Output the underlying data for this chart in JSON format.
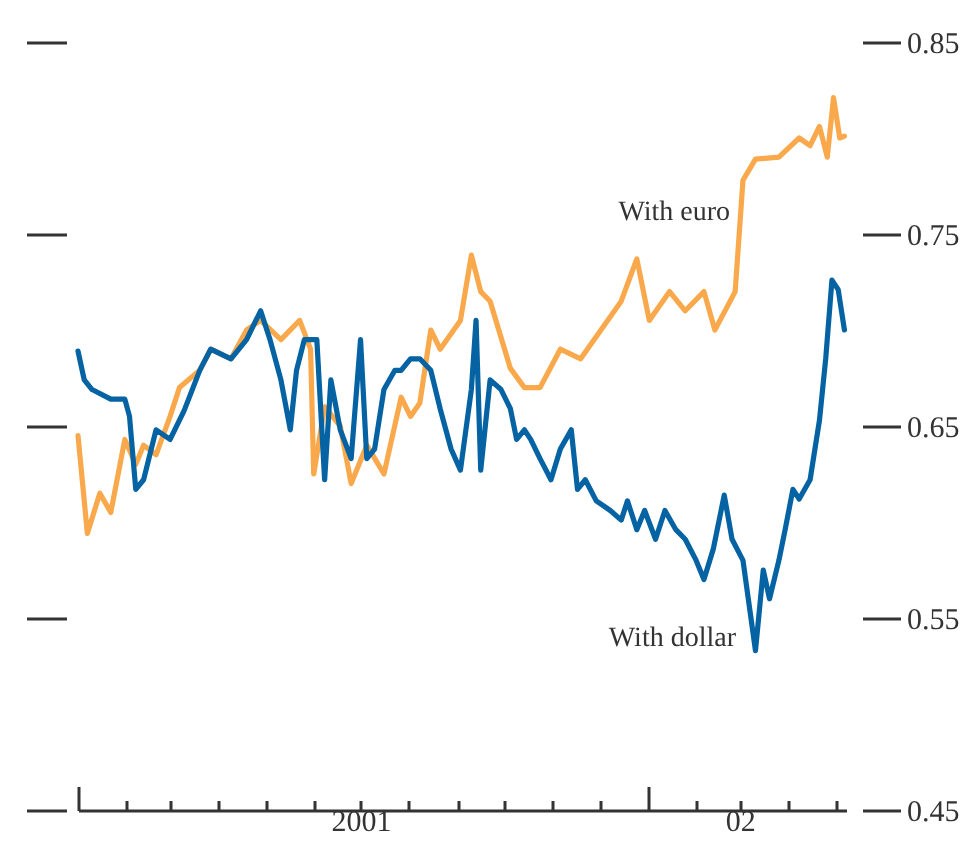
{
  "chart_data": {
    "type": "line",
    "xlim": [
      "2001-01-01",
      "2002-05-08"
    ],
    "ylim": [
      0.45,
      0.85
    ],
    "yticks": [
      0.45,
      0.55,
      0.65,
      0.75,
      0.85
    ],
    "xticks": [
      {
        "value": "2001-01-01",
        "label": null
      },
      {
        "value": "2001-02-01",
        "label": null
      },
      {
        "value": "2001-03-01",
        "label": null
      },
      {
        "value": "2001-04-01",
        "label": null
      },
      {
        "value": "2001-05-01",
        "label": null
      },
      {
        "value": "2001-06-01",
        "label": null
      },
      {
        "value": "2001-07-01",
        "label": "2001"
      },
      {
        "value": "2001-08-01",
        "label": null
      },
      {
        "value": "2001-09-01",
        "label": null
      },
      {
        "value": "2001-10-01",
        "label": null
      },
      {
        "value": "2001-11-01",
        "label": null
      },
      {
        "value": "2001-12-01",
        "label": null
      },
      {
        "value": "2002-01-01",
        "label": null
      },
      {
        "value": "2002-02-01",
        "label": null
      },
      {
        "value": "2002-03-01",
        "label": "02"
      },
      {
        "value": "2002-04-01",
        "label": null
      },
      {
        "value": "2002-05-01",
        "label": null
      }
    ],
    "grid": false,
    "line_style": "solid",
    "marker": "none",
    "series": [
      {
        "name": "With euro",
        "color": "#f9a94c",
        "x": [
          "2001-01-01",
          "2001-01-07",
          "2001-01-15",
          "2001-01-22",
          "2001-01-31",
          "2001-02-07",
          "2001-02-12",
          "2001-02-20",
          "2001-03-01",
          "2001-03-07",
          "2001-03-20",
          "2001-03-27",
          "2001-04-09",
          "2001-04-19",
          "2001-04-28",
          "2001-05-11",
          "2001-05-23",
          "2001-05-30",
          "2001-06-01",
          "2001-06-08",
          "2001-06-18",
          "2001-06-25",
          "2001-07-05",
          "2001-07-16",
          "2001-07-27",
          "2001-08-02",
          "2001-08-08",
          "2001-08-15",
          "2001-08-21",
          "2001-09-03",
          "2001-09-10",
          "2001-09-16",
          "2001-09-22",
          "2001-10-05",
          "2001-10-14",
          "2001-10-24",
          "2001-11-06",
          "2001-11-19",
          "2001-12-02",
          "2001-12-15",
          "2001-12-25",
          "2002-01-02",
          "2002-01-15",
          "2002-01-25",
          "2002-02-06",
          "2002-02-13",
          "2002-02-26",
          "2002-03-03",
          "2002-03-11",
          "2002-03-26",
          "2002-04-08",
          "2002-04-15",
          "2002-04-21",
          "2002-04-26",
          "2002-04-30",
          "2002-05-04",
          "2002-05-07"
        ],
        "values": [
          0.645,
          0.594,
          0.615,
          0.605,
          0.643,
          0.63,
          0.64,
          0.635,
          0.655,
          0.67,
          0.679,
          0.69,
          0.685,
          0.7,
          0.705,
          0.695,
          0.705,
          0.69,
          0.625,
          0.66,
          0.65,
          0.62,
          0.64,
          0.625,
          0.665,
          0.655,
          0.662,
          0.7,
          0.69,
          0.705,
          0.739,
          0.72,
          0.715,
          0.68,
          0.67,
          0.67,
          0.69,
          0.685,
          0.7,
          0.715,
          0.737,
          0.705,
          0.72,
          0.71,
          0.72,
          0.7,
          0.72,
          0.778,
          0.789,
          0.79,
          0.8,
          0.796,
          0.806,
          0.79,
          0.821,
          0.8,
          0.801
        ]
      },
      {
        "name": "With dollar",
        "color": "#0563a3",
        "x": [
          "2001-01-01",
          "2001-01-05",
          "2001-01-10",
          "2001-01-22",
          "2001-01-31",
          "2001-02-03",
          "2001-02-07",
          "2001-02-12",
          "2001-02-20",
          "2001-03-01",
          "2001-03-10",
          "2001-03-20",
          "2001-03-27",
          "2001-04-09",
          "2001-04-19",
          "2001-04-28",
          "2001-05-04",
          "2001-05-11",
          "2001-05-17",
          "2001-05-21",
          "2001-05-26",
          "2001-06-03",
          "2001-06-08",
          "2001-06-12",
          "2001-06-18",
          "2001-06-25",
          "2001-07-01",
          "2001-07-05",
          "2001-07-10",
          "2001-07-16",
          "2001-07-23",
          "2001-07-27",
          "2001-08-02",
          "2001-08-08",
          "2001-08-15",
          "2001-08-21",
          "2001-08-28",
          "2001-09-03",
          "2001-09-10",
          "2001-09-13",
          "2001-09-16",
          "2001-09-22",
          "2001-09-29",
          "2001-10-05",
          "2001-10-09",
          "2001-10-14",
          "2001-10-18",
          "2001-10-24",
          "2001-10-31",
          "2001-11-06",
          "2001-11-13",
          "2001-11-17",
          "2001-11-22",
          "2001-11-29",
          "2001-12-08",
          "2001-12-15",
          "2001-12-19",
          "2001-12-25",
          "2001-12-30",
          "2002-01-06",
          "2002-01-12",
          "2002-01-19",
          "2002-01-25",
          "2002-02-01",
          "2002-02-06",
          "2002-02-12",
          "2002-02-19",
          "2002-02-24",
          "2002-03-03",
          "2002-03-11",
          "2002-03-16",
          "2002-03-20",
          "2002-03-26",
          "2002-03-30",
          "2002-04-04",
          "2002-04-08",
          "2002-04-15",
          "2002-04-21",
          "2002-04-25",
          "2002-04-29",
          "2002-05-03",
          "2002-05-07"
        ],
        "values": [
          0.689,
          0.674,
          0.669,
          0.664,
          0.664,
          0.655,
          0.617,
          0.622,
          0.648,
          0.643,
          0.658,
          0.679,
          0.69,
          0.685,
          0.695,
          0.71,
          0.695,
          0.674,
          0.648,
          0.679,
          0.695,
          0.695,
          0.622,
          0.674,
          0.648,
          0.633,
          0.695,
          0.633,
          0.638,
          0.669,
          0.679,
          0.679,
          0.685,
          0.685,
          0.679,
          0.659,
          0.638,
          0.627,
          0.669,
          0.705,
          0.627,
          0.674,
          0.669,
          0.659,
          0.643,
          0.648,
          0.643,
          0.633,
          0.622,
          0.638,
          0.648,
          0.617,
          0.622,
          0.611,
          0.606,
          0.601,
          0.611,
          0.596,
          0.606,
          0.591,
          0.606,
          0.596,
          0.591,
          0.58,
          0.57,
          0.586,
          0.614,
          0.591,
          0.58,
          0.533,
          0.575,
          0.56,
          0.58,
          0.596,
          0.617,
          0.612,
          0.622,
          0.653,
          0.685,
          0.726,
          0.721,
          0.7
        ]
      }
    ]
  }
}
